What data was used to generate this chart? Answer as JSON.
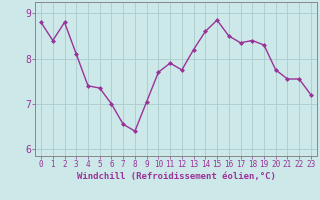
{
  "x": [
    0,
    1,
    2,
    3,
    4,
    5,
    6,
    7,
    8,
    9,
    10,
    11,
    12,
    13,
    14,
    15,
    16,
    17,
    18,
    19,
    20,
    21,
    22,
    23
  ],
  "y": [
    8.8,
    8.4,
    8.8,
    8.1,
    7.4,
    7.35,
    7.0,
    6.55,
    6.4,
    7.05,
    7.7,
    7.9,
    7.75,
    8.2,
    8.6,
    8.85,
    8.5,
    8.35,
    8.4,
    8.3,
    7.75,
    7.55,
    7.55,
    7.2
  ],
  "line_color": "#993399",
  "marker": "D",
  "marker_size": 2.0,
  "bg_color": "#cce8e8",
  "grid_color": "#aacccc",
  "xlabel": "Windchill (Refroidissement éolien,°C)",
  "xlabel_color": "#993399",
  "xlabel_fontsize": 6.5,
  "ylim": [
    5.85,
    9.25
  ],
  "xlim": [
    -0.5,
    23.5
  ],
  "yticks": [
    6,
    7,
    8,
    9
  ],
  "xticks": [
    0,
    1,
    2,
    3,
    4,
    5,
    6,
    7,
    8,
    9,
    10,
    11,
    12,
    13,
    14,
    15,
    16,
    17,
    18,
    19,
    20,
    21,
    22,
    23
  ],
  "tick_color": "#993399",
  "ytick_fontsize": 7.0,
  "xtick_fontsize": 5.5,
  "spine_color": "#888888",
  "linewidth": 1.0
}
